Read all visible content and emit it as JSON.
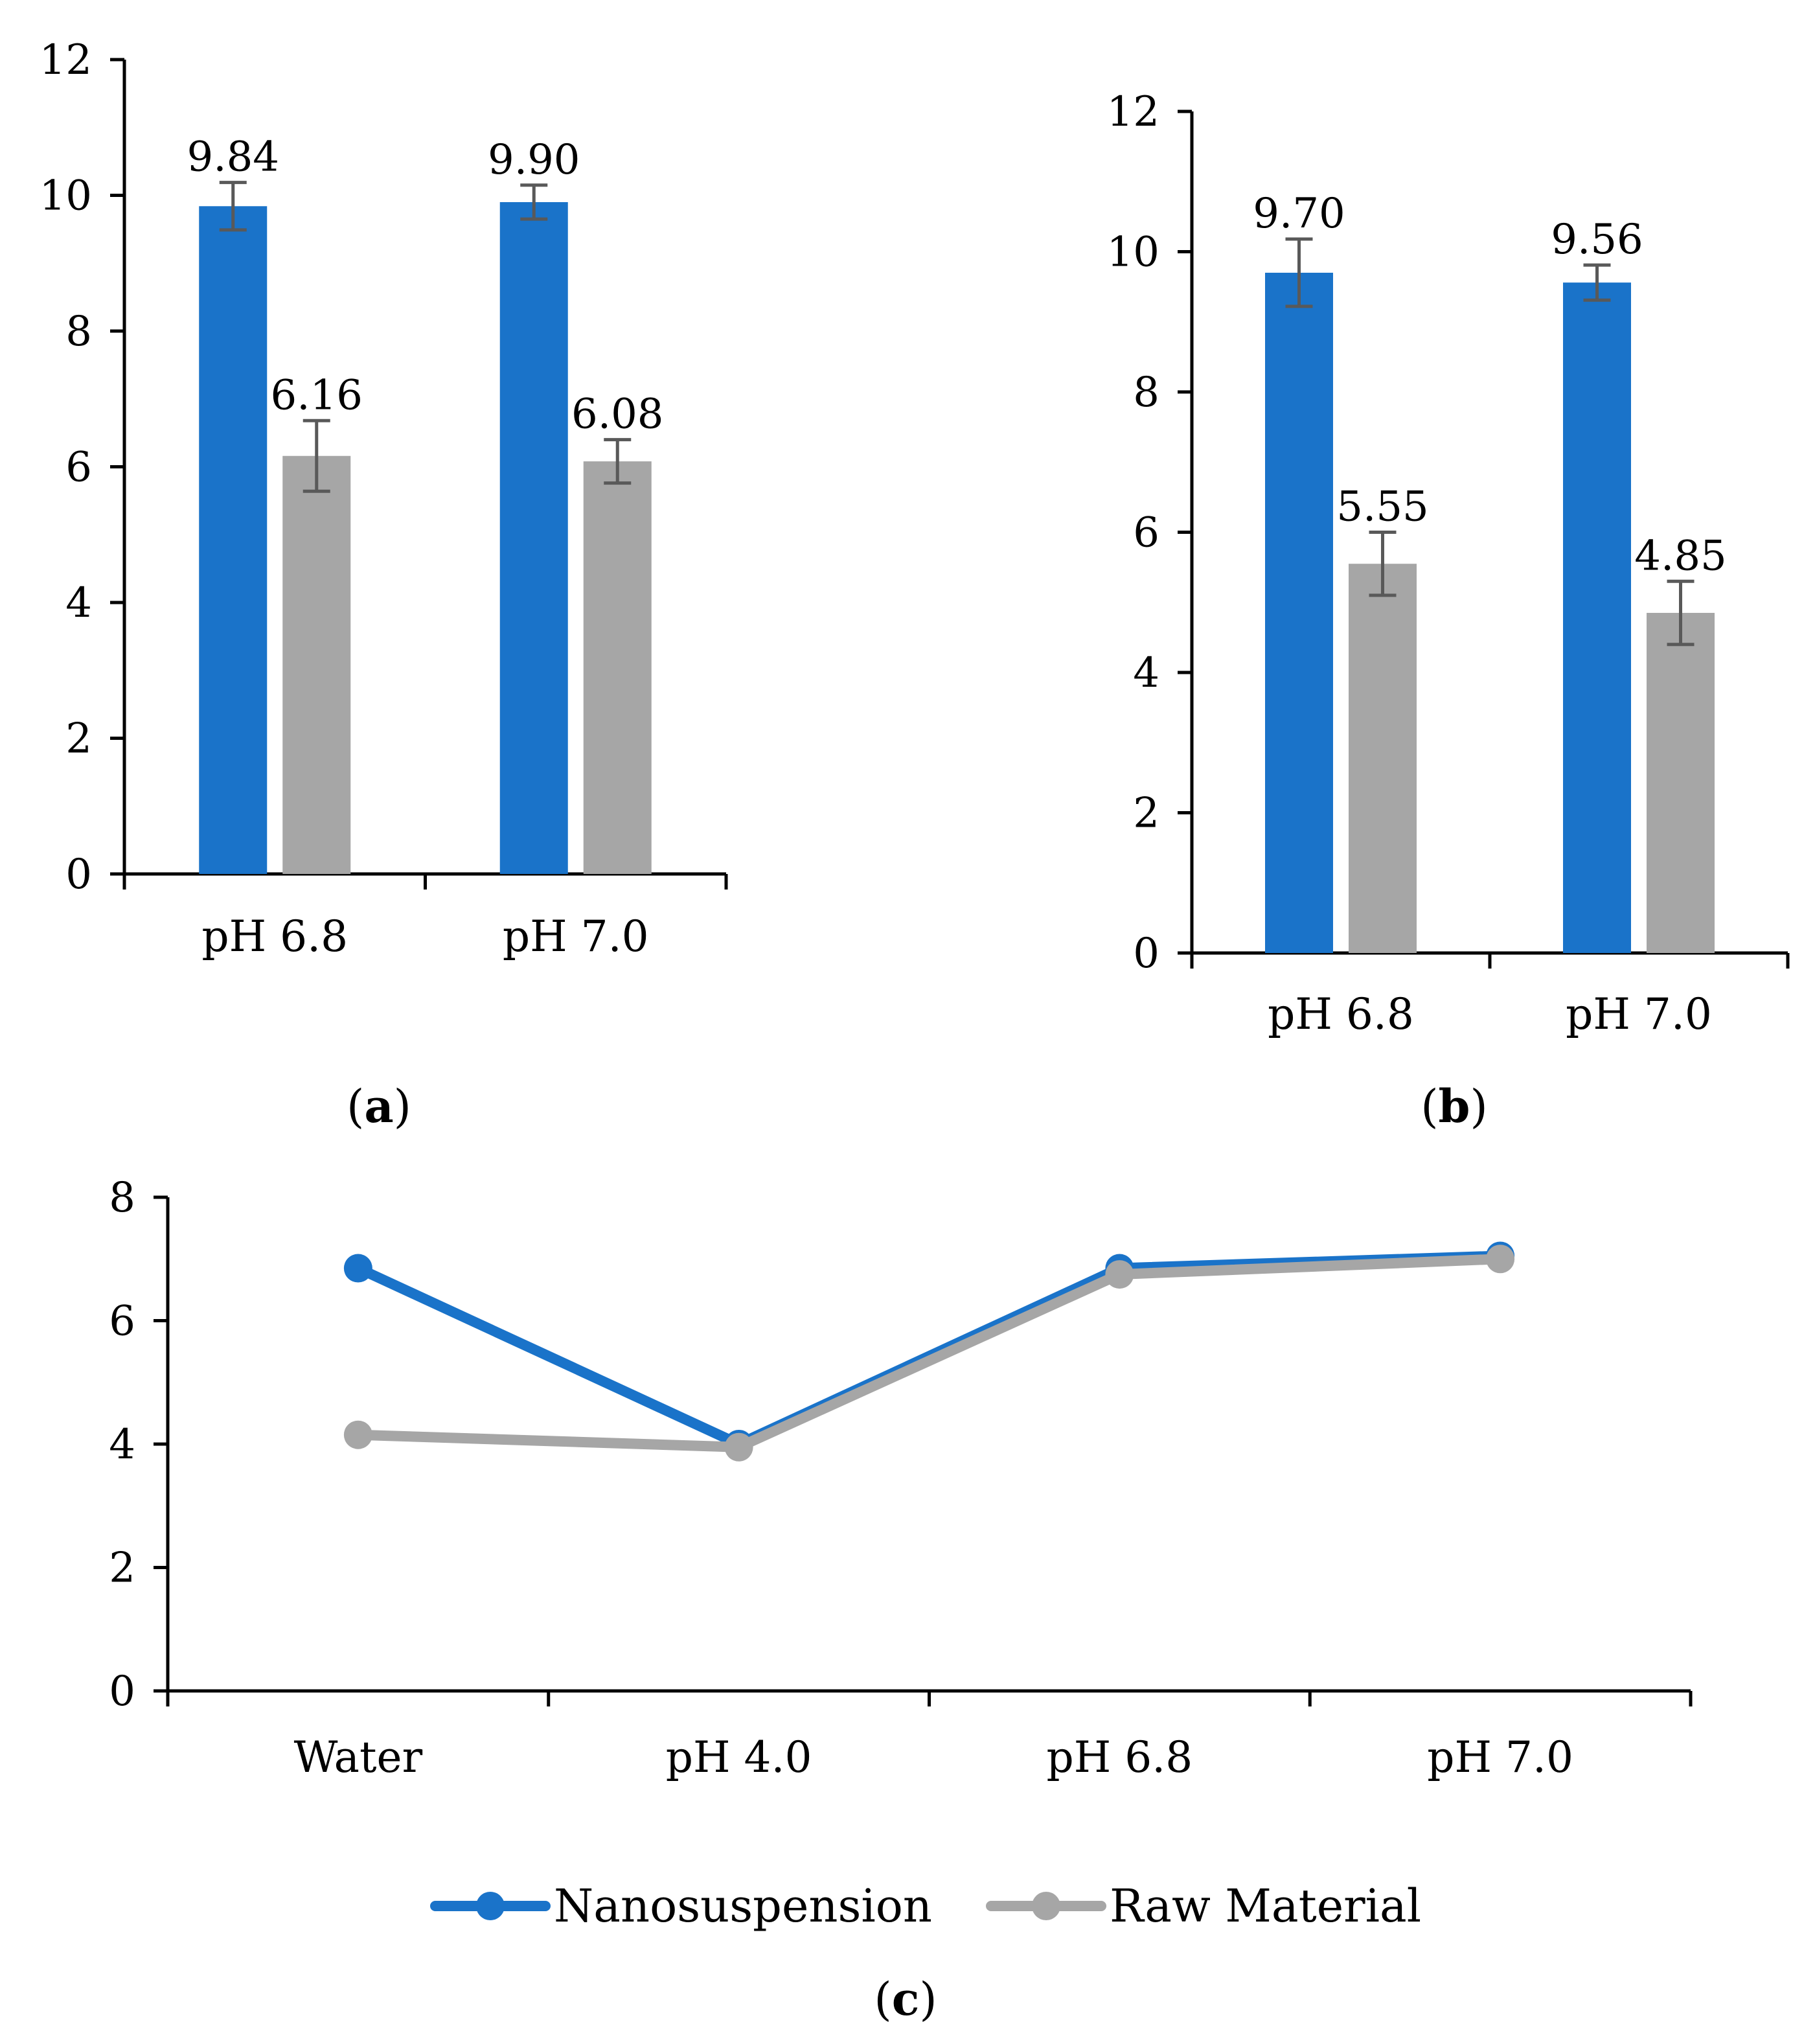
{
  "figure": {
    "legend": {
      "items": [
        {
          "name": "Nanosuspension",
          "color": "#1a73c9"
        },
        {
          "name": "Raw Material",
          "color": "#a6a6a6"
        }
      ]
    }
  },
  "chart_data": [
    {
      "panel": "a",
      "panel_label": "(a)",
      "type": "bar",
      "categories": [
        "pH 6.8",
        "pH 7.0"
      ],
      "series": [
        {
          "name": "Nanosuspension",
          "color": "#1a73c9",
          "values": [
            9.84,
            9.9
          ],
          "errors": [
            0.35,
            0.25
          ],
          "labels": [
            "9.84",
            "9.90"
          ]
        },
        {
          "name": "Raw Material",
          "color": "#a6a6a6",
          "values": [
            6.16,
            6.08
          ],
          "errors": [
            0.52,
            0.32
          ],
          "labels": [
            "6.16",
            "6.08"
          ]
        }
      ],
      "ylim": [
        0,
        12
      ],
      "yticks": [
        "0",
        "2",
        "4",
        "6",
        "8",
        "10",
        "12"
      ],
      "title": "",
      "xlabel": "",
      "ylabel": ""
    },
    {
      "panel": "b",
      "panel_label": "(b)",
      "type": "bar",
      "categories": [
        "pH 6.8",
        "pH 7.0"
      ],
      "series": [
        {
          "name": "Nanosuspension",
          "color": "#1a73c9",
          "values": [
            9.7,
            9.56
          ],
          "errors": [
            0.48,
            0.25
          ],
          "labels": [
            "9.70",
            "9.56"
          ]
        },
        {
          "name": "Raw Material",
          "color": "#a6a6a6",
          "values": [
            5.55,
            4.85
          ],
          "errors": [
            0.45,
            0.45
          ],
          "labels": [
            "5.55",
            "4.85"
          ]
        }
      ],
      "ylim": [
        0,
        12
      ],
      "yticks": [
        "0",
        "2",
        "4",
        "6",
        "8",
        "10",
        "12"
      ],
      "title": "",
      "xlabel": "",
      "ylabel": ""
    },
    {
      "panel": "c",
      "panel_label": "(c)",
      "type": "line",
      "categories": [
        "Water",
        "pH 4.0",
        "pH 6.8",
        "pH 7.0"
      ],
      "series": [
        {
          "name": "Nanosuspension",
          "color": "#1a73c9",
          "values": [
            6.85,
            4.0,
            6.85,
            7.05
          ]
        },
        {
          "name": "Raw Material",
          "color": "#a6a6a6",
          "values": [
            4.15,
            3.95,
            6.75,
            7.0
          ]
        }
      ],
      "ylim": [
        0,
        8
      ],
      "yticks": [
        "0",
        "2",
        "4",
        "6",
        "8"
      ],
      "legend_position": "bottom-center",
      "title": "",
      "xlabel": "",
      "ylabel": ""
    }
  ]
}
